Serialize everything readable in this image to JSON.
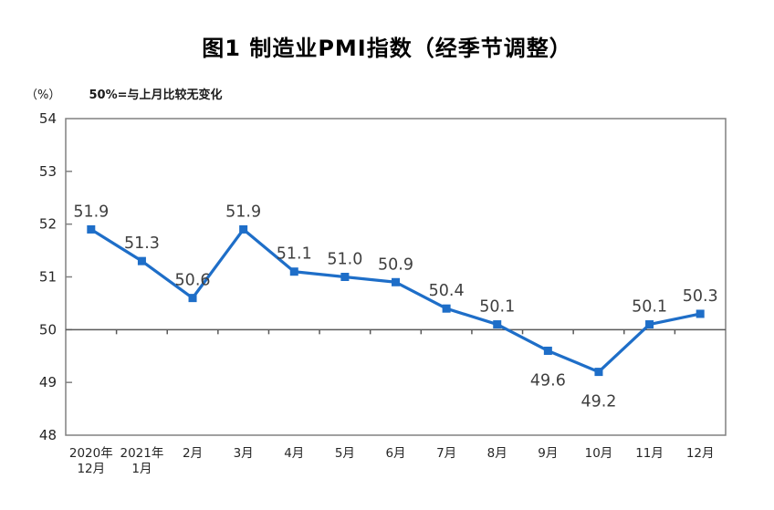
{
  "figure": {
    "title": "图1 制造业PMI指数（经季节调整）",
    "unit_label": "（%）",
    "note": "50%=与上月比较无变化"
  },
  "chart_data": {
    "type": "line",
    "title": "图1 制造业PMI指数（经季节调整）",
    "unit": "（%）",
    "annotation": "50%=与上月比较无变化",
    "categories": [
      "2020年12月",
      "2021年1月",
      "2月",
      "3月",
      "4月",
      "5月",
      "6月",
      "7月",
      "8月",
      "9月",
      "10月",
      "11月",
      "12月"
    ],
    "values": [
      51.9,
      51.3,
      50.6,
      51.9,
      51.1,
      51.0,
      50.9,
      50.4,
      50.1,
      49.6,
      49.2,
      50.1,
      50.3
    ],
    "ylim": [
      48,
      54
    ],
    "yticks": [
      48,
      49,
      50,
      51,
      52,
      53,
      54
    ],
    "reference_line": 50,
    "grid": false,
    "legend": "none",
    "line_color": "#1E6EC8",
    "marker": "square",
    "label_color": "#3F3F3F",
    "axis_color": "#808080",
    "reference_line_color": "#595959",
    "tick_label_color": "#262626",
    "labels_below_indices": [
      9,
      10
    ]
  }
}
